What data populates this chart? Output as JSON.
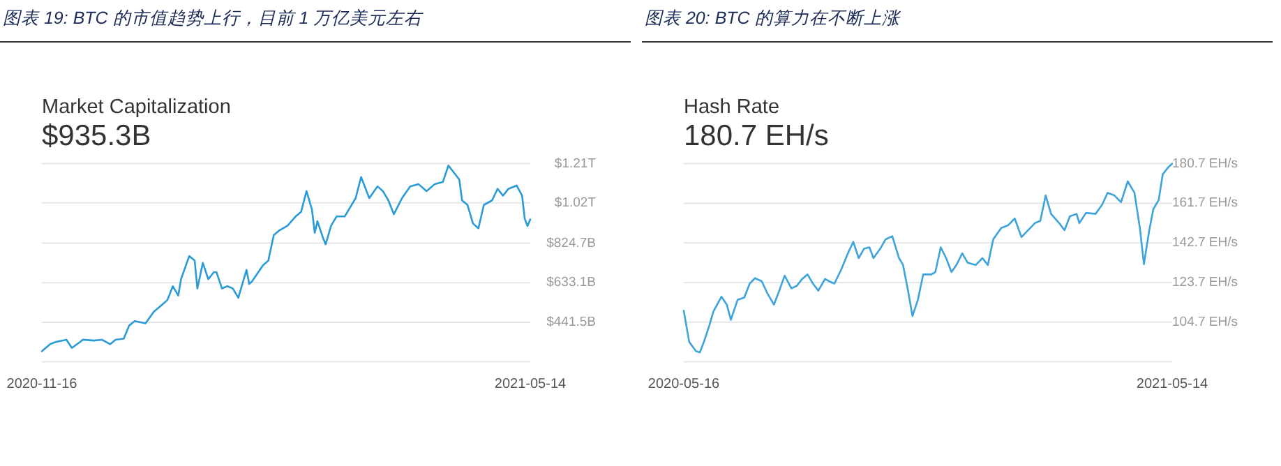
{
  "chart_data": [
    {
      "type": "line",
      "title": "图表 19: BTC 的市值趋势上行，目前 1 万亿美元左右",
      "subtitle": "Market Capitalization",
      "annotations": [
        "$935.3B"
      ],
      "xlim": [
        "2020-11-16",
        "2021-05-14"
      ],
      "xticks": [
        "2020-11-16",
        "2021-05-14"
      ],
      "ylim": [
        249900000000.0,
        1210000000000.0
      ],
      "yticks": [
        {
          "value": 441500000000.0,
          "label": "$441.5B"
        },
        {
          "value": 633100000000.0,
          "label": "$633.1B"
        },
        {
          "value": 824700000000.0,
          "label": "$824.7B"
        },
        {
          "value": 1020000000000.0,
          "label": "$1.02T"
        },
        {
          "value": 1210000000000.0,
          "label": "$1.21T"
        }
      ],
      "grid": "y",
      "series": [
        {
          "color": "#2b9bd6",
          "x": [
            "2020-11-16",
            "2020-11-19",
            "2020-11-21",
            "2020-11-25",
            "2020-11-27",
            "2020-11-30",
            "2020-12-01",
            "2020-12-05",
            "2020-12-08",
            "2020-12-11",
            "2020-12-13",
            "2020-12-16",
            "2020-12-18",
            "2020-12-20",
            "2020-12-24",
            "2020-12-27",
            "2020-12-30",
            "2021-01-01",
            "2021-01-03",
            "2021-01-05",
            "2021-01-06",
            "2021-01-09",
            "2021-01-11",
            "2021-01-12",
            "2021-01-14",
            "2021-01-16",
            "2021-01-18",
            "2021-01-19",
            "2021-01-21",
            "2021-01-23",
            "2021-01-25",
            "2021-01-27",
            "2021-01-30",
            "2021-01-31",
            "2021-02-01",
            "2021-02-05",
            "2021-02-07",
            "2021-02-09",
            "2021-02-11",
            "2021-02-14",
            "2021-02-17",
            "2021-02-19",
            "2021-02-21",
            "2021-02-23",
            "2021-02-24",
            "2021-02-25",
            "2021-02-27",
            "2021-02-28",
            "2021-03-02",
            "2021-03-04",
            "2021-03-07",
            "2021-03-11",
            "2021-03-13",
            "2021-03-16",
            "2021-03-19",
            "2021-03-21",
            "2021-03-23",
            "2021-03-25",
            "2021-03-28",
            "2021-03-31",
            "2021-04-03",
            "2021-04-06",
            "2021-04-09",
            "2021-04-12",
            "2021-04-14",
            "2021-04-16",
            "2021-04-18",
            "2021-04-19",
            "2021-04-21",
            "2021-04-23",
            "2021-04-25",
            "2021-04-27",
            "2021-04-30",
            "2021-05-02",
            "2021-05-04",
            "2021-05-06",
            "2021-05-09",
            "2021-05-11",
            "2021-05-12",
            "2021-05-13",
            "2021-05-14"
          ],
          "values": [
            301000000000.0,
            335000000000.0,
            346000000000.0,
            357000000000.0,
            317000000000.0,
            346000000000.0,
            357000000000.0,
            353000000000.0,
            357000000000.0,
            335000000000.0,
            357000000000.0,
            362000000000.0,
            425000000000.0,
            447000000000.0,
            436000000000.0,
            492000000000.0,
            526000000000.0,
            549000000000.0,
            616000000000.0,
            571000000000.0,
            650000000000.0,
            762000000000.0,
            740000000000.0,
            605000000000.0,
            729000000000.0,
            650000000000.0,
            684000000000.0,
            684000000000.0,
            605000000000.0,
            616000000000.0,
            605000000000.0,
            560000000000.0,
            695000000000.0,
            627000000000.0,
            639000000000.0,
            717000000000.0,
            740000000000.0,
            864000000000.0,
            886000000000.0,
            909000000000.0,
            954000000000.0,
            976000000000.0,
            1077000000000.0,
            987000000000.0,
            875000000000.0,
            931000000000.0,
            852000000000.0,
            819000000000.0,
            909000000000.0,
            954000000000.0,
            954000000000.0,
            1043000000000.0,
            1145000000000.0,
            1043000000000.0,
            1100000000000.0,
            1077000000000.0,
            1032000000000.0,
            965000000000.0,
            1043000000000.0,
            1100000000000.0,
            1111000000000.0,
            1077000000000.0,
            1111000000000.0,
            1122000000000.0,
            1201000000000.0,
            1167000000000.0,
            1133000000000.0,
            1032000000000.0,
            1010000000000.0,
            920000000000.0,
            897000000000.0,
            1010000000000.0,
            1032000000000.0,
            1088000000000.0,
            1055000000000.0,
            1088000000000.0,
            1104000000000.0,
            1055000000000.0,
            942000000000.0,
            908000000000.0,
            940000000000.0
          ]
        }
      ]
    },
    {
      "type": "line",
      "title": "图表 20: BTC 的算力在不断上涨",
      "subtitle": "Hash Rate",
      "annotations": [
        "180.7 EH/s"
      ],
      "xlim": [
        "2020-05-16",
        "2021-05-14"
      ],
      "xticks": [
        "2020-05-16",
        "2021-05-14"
      ],
      "ylim": [
        85.7,
        180.7
      ],
      "yticks": [
        {
          "value": 104.7,
          "label": "104.7 EH/s"
        },
        {
          "value": 123.7,
          "label": "123.7 EH/s"
        },
        {
          "value": 142.7,
          "label": "142.7 EH/s"
        },
        {
          "value": 161.7,
          "label": "161.7 EH/s"
        },
        {
          "value": 180.7,
          "label": "180.7 EH/s"
        }
      ],
      "grid": "y",
      "series": [
        {
          "color": "#3ea3da",
          "x": [
            "2020-05-16",
            "2020-05-20",
            "2020-05-25",
            "2020-05-28",
            "2020-05-31",
            "2020-06-04",
            "2020-06-07",
            "2020-06-13",
            "2020-06-17",
            "2020-06-20",
            "2020-06-25",
            "2020-06-30",
            "2020-07-04",
            "2020-07-08",
            "2020-07-13",
            "2020-07-17",
            "2020-07-22",
            "2020-07-26",
            "2020-07-30",
            "2020-08-04",
            "2020-08-08",
            "2020-08-12",
            "2020-08-16",
            "2020-08-20",
            "2020-08-24",
            "2020-08-29",
            "2020-09-01",
            "2020-09-05",
            "2020-09-10",
            "2020-09-15",
            "2020-09-19",
            "2020-09-23",
            "2020-09-27",
            "2020-10-01",
            "2020-10-04",
            "2020-10-09",
            "2020-10-13",
            "2020-10-18",
            "2020-10-23",
            "2020-10-26",
            "2020-10-30",
            "2020-11-02",
            "2020-11-06",
            "2020-11-10",
            "2020-11-16",
            "2020-11-19",
            "2020-11-23",
            "2020-11-27",
            "2020-12-01",
            "2020-12-05",
            "2020-12-09",
            "2020-12-13",
            "2020-12-19",
            "2020-12-24",
            "2020-12-28",
            "2021-01-01",
            "2021-01-07",
            "2021-01-12",
            "2021-01-17",
            "2021-01-22",
            "2021-01-27",
            "2021-02-01",
            "2021-02-05",
            "2021-02-09",
            "2021-02-13",
            "2021-02-19",
            "2021-02-23",
            "2021-02-27",
            "2021-03-04",
            "2021-03-06",
            "2021-03-11",
            "2021-03-18",
            "2021-03-23",
            "2021-03-27",
            "2021-04-01",
            "2021-04-06",
            "2021-04-11",
            "2021-04-16",
            "2021-04-20",
            "2021-04-23",
            "2021-04-27",
            "2021-04-30",
            "2021-05-04",
            "2021-05-07",
            "2021-05-11",
            "2021-05-14"
          ],
          "values": [
            110.2,
            95.3,
            90.8,
            90.2,
            95.3,
            103.1,
            109.8,
            116.9,
            113.1,
            105.8,
            115.4,
            116.5,
            123.2,
            125.8,
            124.3,
            118.7,
            113.1,
            119.8,
            127.0,
            120.9,
            122.1,
            125.4,
            127.6,
            123.2,
            119.8,
            125.4,
            124.3,
            123.2,
            129.9,
            137.7,
            143.2,
            135.4,
            139.9,
            140.6,
            135.4,
            139.9,
            144.4,
            145.9,
            135.4,
            132.1,
            118.7,
            107.6,
            115.4,
            127.6,
            127.6,
            128.7,
            140.6,
            135.4,
            128.7,
            132.5,
            137.7,
            133.2,
            132.1,
            135.4,
            132.1,
            144.4,
            149.9,
            151.1,
            154.4,
            145.5,
            148.8,
            152.2,
            153.3,
            165.5,
            156.6,
            152.2,
            148.8,
            155.5,
            156.6,
            152.2,
            157.1,
            156.6,
            161.1,
            166.7,
            165.5,
            162.2,
            172.2,
            166.7,
            149.9,
            132.5,
            148.8,
            158.9,
            163.3,
            175.6,
            178.9,
            180.7
          ]
        }
      ]
    }
  ]
}
